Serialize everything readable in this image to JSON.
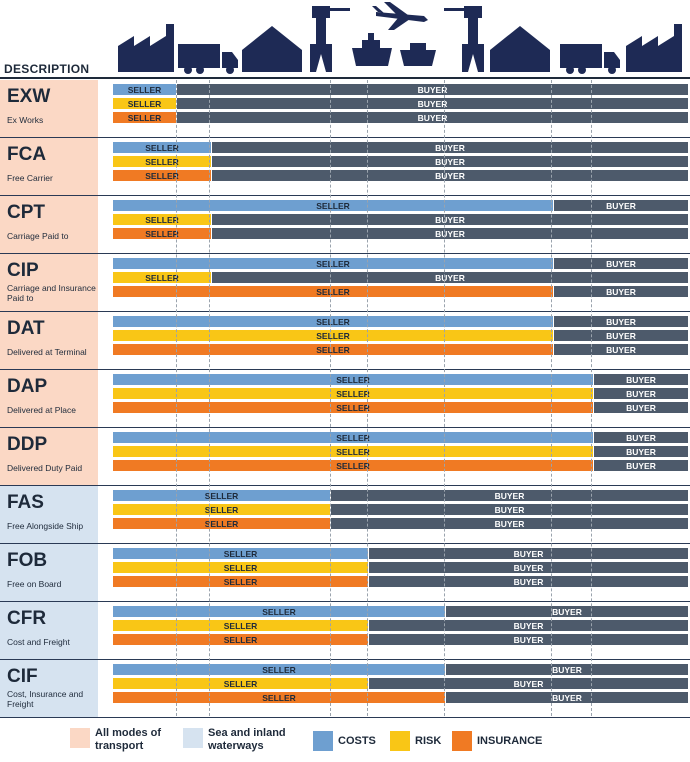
{
  "colors": {
    "costs": "#6e9fd0",
    "risk": "#f9c616",
    "insurance": "#f07a23",
    "buyer": "#4d5a6b",
    "all_modes": "#fbd8c5",
    "sea": "#d6e3f0",
    "navy": "#1e2a55"
  },
  "header": {
    "description": "DESCRIPTION",
    "icons": [
      "factory-icon",
      "truck-icon",
      "warehouse-icon",
      "port-crane-icon",
      "ship-icon",
      "airplane-icon",
      "port-crane-icon",
      "warehouse-icon",
      "truck-icon",
      "factory-icon"
    ]
  },
  "terms": [
    {
      "code": "EXW",
      "name": "Ex Works",
      "mode": "all",
      "costs": {
        "seller": "SELLER",
        "buyer": "BUYER",
        "split": 0.11
      },
      "risk": {
        "seller": "SELLER",
        "buyer": "BUYER",
        "split": 0.11
      },
      "insurance": {
        "seller": "SELLER",
        "buyer": "BUYER",
        "split": 0.11
      }
    },
    {
      "code": "FCA",
      "name": "Free Carrier",
      "mode": "all",
      "costs": {
        "seller": "SELLER",
        "buyer": "BUYER",
        "split": 0.17
      },
      "risk": {
        "seller": "SELLER",
        "buyer": "BUYER",
        "split": 0.17
      },
      "insurance": {
        "seller": "SELLER",
        "buyer": "BUYER",
        "split": 0.17
      }
    },
    {
      "code": "CPT",
      "name": "Carriage Paid to",
      "mode": "all",
      "costs": {
        "seller": "SELLER",
        "buyer": "BUYER",
        "split": 0.765
      },
      "risk": {
        "seller": "SELLER",
        "buyer": "BUYER",
        "split": 0.17
      },
      "insurance": {
        "seller": "SELLER",
        "buyer": "BUYER",
        "split": 0.17
      }
    },
    {
      "code": "CIP",
      "name": "Carriage and Insurance Paid to",
      "mode": "all",
      "costs": {
        "seller": "SELLER",
        "buyer": "BUYER",
        "split": 0.765
      },
      "risk": {
        "seller": "SELLER",
        "buyer": "BUYER",
        "split": 0.17
      },
      "insurance": {
        "seller": "SELLER",
        "buyer": "BUYER",
        "split": 0.765
      }
    },
    {
      "code": "DAT",
      "name": "Delivered at Terminal",
      "mode": "all",
      "costs": {
        "seller": "SELLER",
        "buyer": "BUYER",
        "split": 0.765
      },
      "risk": {
        "seller": "SELLER",
        "buyer": "BUYER",
        "split": 0.765
      },
      "insurance": {
        "seller": "SELLER",
        "buyer": "BUYER",
        "split": 0.765
      }
    },
    {
      "code": "DAP",
      "name": "Delivered at Place",
      "mode": "all",
      "costs": {
        "seller": "SELLER",
        "buyer": "BUYER",
        "split": 0.835
      },
      "risk": {
        "seller": "SELLER",
        "buyer": "BUYER",
        "split": 0.835
      },
      "insurance": {
        "seller": "SELLER",
        "buyer": "BUYER",
        "split": 0.835
      }
    },
    {
      "code": "DDP",
      "name": "Delivered Duty Paid",
      "mode": "all",
      "costs": {
        "seller": "SELLER",
        "buyer": "BUYER",
        "split": 0.835
      },
      "risk": {
        "seller": "SELLER",
        "buyer": "BUYER",
        "split": 0.835
      },
      "insurance": {
        "seller": "SELLER",
        "buyer": "BUYER",
        "split": 0.835
      }
    },
    {
      "code": "FAS",
      "name": "Free Alongside Ship",
      "mode": "sea",
      "costs": {
        "seller": "SELLER",
        "buyer": "BUYER",
        "split": 0.377
      },
      "risk": {
        "seller": "SELLER",
        "buyer": "BUYER",
        "split": 0.377
      },
      "insurance": {
        "seller": "SELLER",
        "buyer": "BUYER",
        "split": 0.377
      }
    },
    {
      "code": "FOB",
      "name": "Free on Board",
      "mode": "sea",
      "costs": {
        "seller": "SELLER",
        "buyer": "BUYER",
        "split": 0.443
      },
      "risk": {
        "seller": "SELLER",
        "buyer": "BUYER",
        "split": 0.443
      },
      "insurance": {
        "seller": "SELLER",
        "buyer": "BUYER",
        "split": 0.443
      }
    },
    {
      "code": "CFR",
      "name": "Cost and Freight",
      "mode": "sea",
      "costs": {
        "seller": "SELLER",
        "buyer": "BUYER",
        "split": 0.577
      },
      "risk": {
        "seller": "SELLER",
        "buyer": "BUYER",
        "split": 0.443
      },
      "insurance": {
        "seller": "SELLER",
        "buyer": "BUYER",
        "split": 0.443
      }
    },
    {
      "code": "CIF",
      "name": "Cost, Insurance and Freight",
      "mode": "sea",
      "costs": {
        "seller": "SELLER",
        "buyer": "BUYER",
        "split": 0.577
      },
      "risk": {
        "seller": "SELLER",
        "buyer": "BUYER",
        "split": 0.443
      },
      "insurance": {
        "seller": "SELLER",
        "buyer": "BUYER",
        "split": 0.577
      }
    }
  ],
  "legend": {
    "all_modes": "All modes of transport",
    "sea": "Sea and inland waterways",
    "costs": "COSTS",
    "risk": "RISK",
    "insurance": "INSURANCE"
  }
}
